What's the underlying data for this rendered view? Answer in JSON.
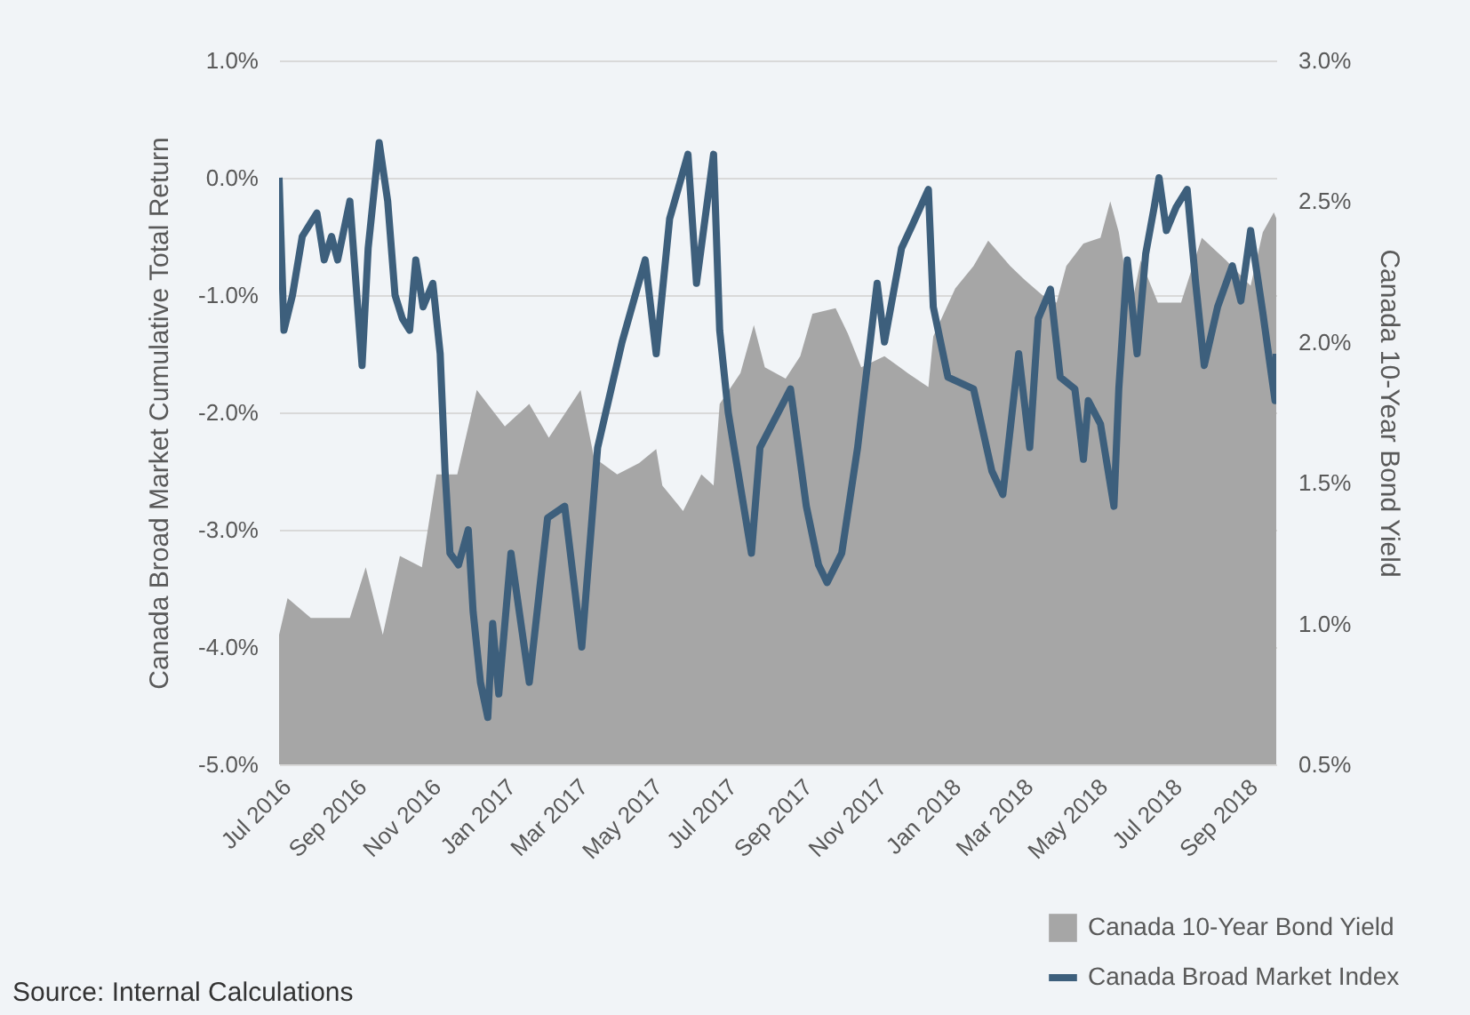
{
  "chart_data": {
    "type": "line",
    "ylabel": "Canada Broad Market Cumulative Total Return",
    "y2label": "Canada 10-Year Bond Yield",
    "annotations": [
      "Source: Internal Calculations"
    ],
    "xlim": [
      "2016-07-01",
      "2018-09-26"
    ],
    "xticks": [
      {
        "value": "2016-07-01",
        "label": "Jul 2016"
      },
      {
        "value": "2016-09-01",
        "label": "Sep 2016"
      },
      {
        "value": "2016-11-01",
        "label": "Nov 2016"
      },
      {
        "value": "2017-01-01",
        "label": "Jan 2017"
      },
      {
        "value": "2017-03-01",
        "label": "Mar 2017"
      },
      {
        "value": "2017-05-01",
        "label": "May 2017"
      },
      {
        "value": "2017-07-01",
        "label": "Jul 2017"
      },
      {
        "value": "2017-09-01",
        "label": "Sep 2017"
      },
      {
        "value": "2017-11-01",
        "label": "Nov 2017"
      },
      {
        "value": "2018-01-01",
        "label": "Jan 2018"
      },
      {
        "value": "2018-03-01",
        "label": "Mar 2018"
      },
      {
        "value": "2018-05-01",
        "label": "May 2018"
      },
      {
        "value": "2018-07-01",
        "label": "Jul 2018"
      },
      {
        "value": "2018-09-01",
        "label": "Sep 2018"
      }
    ],
    "ylim": [
      -5.0,
      1.0
    ],
    "yticks": [
      {
        "value": 1.0,
        "label": "1.0%"
      },
      {
        "value": 0.0,
        "label": "0.0%"
      },
      {
        "value": -1.0,
        "label": "-1.0%"
      },
      {
        "value": -2.0,
        "label": "-2.0%"
      },
      {
        "value": -3.0,
        "label": "-3.0%"
      },
      {
        "value": -4.0,
        "label": "-4.0%"
      },
      {
        "value": -5.0,
        "label": "-5.0%"
      }
    ],
    "y2lim": [
      0.5,
      3.0
    ],
    "y2ticks": [
      {
        "value": 0.5,
        "label": "0.5%"
      },
      {
        "value": 1.0,
        "label": "1.0%"
      },
      {
        "value": 1.5,
        "label": "1.5%"
      },
      {
        "value": 2.0,
        "label": "2.0%"
      },
      {
        "value": 2.5,
        "label": "2.5%"
      },
      {
        "value": 3.0,
        "label": "3.0%"
      }
    ],
    "grid": "y",
    "legend": "bottom right",
    "series": [
      {
        "name": "Canada 10-Year Bond Yield",
        "type": "area",
        "axis": "y2",
        "color": "#a6a6a6",
        "x": [
          "2016-07-01",
          "2016-07-08",
          "2016-07-27",
          "2016-08-28",
          "2016-09-10",
          "2016-09-24",
          "2016-10-08",
          "2016-10-26",
          "2016-11-07",
          "2016-11-24",
          "2016-12-10",
          "2017-01-02",
          "2017-01-22",
          "2017-02-07",
          "2017-03-05",
          "2017-03-16",
          "2017-04-04",
          "2017-04-22",
          "2017-05-06",
          "2017-05-11",
          "2017-05-28",
          "2017-06-12",
          "2017-06-22",
          "2017-06-27",
          "2017-07-14",
          "2017-07-25",
          "2017-08-03",
          "2017-08-20",
          "2017-09-01",
          "2017-09-11",
          "2017-09-30",
          "2017-10-10",
          "2017-10-21",
          "2017-11-09",
          "2017-11-28",
          "2017-12-15",
          "2017-12-19",
          "2018-01-06",
          "2018-01-21",
          "2018-02-02",
          "2018-02-20",
          "2018-03-04",
          "2018-03-20",
          "2018-03-30",
          "2018-04-07",
          "2018-04-21",
          "2018-05-05",
          "2018-05-13",
          "2018-05-20",
          "2018-05-30",
          "2018-06-07",
          "2018-06-21",
          "2018-07-10",
          "2018-07-27",
          "2018-08-16",
          "2018-09-05",
          "2018-09-15",
          "2018-09-24",
          "2018-09-26"
        ],
        "values": [
          0.96,
          1.09,
          1.02,
          1.02,
          1.2,
          0.96,
          1.24,
          1.2,
          1.53,
          1.53,
          1.83,
          1.7,
          1.78,
          1.66,
          1.83,
          1.59,
          1.53,
          1.57,
          1.62,
          1.49,
          1.4,
          1.53,
          1.49,
          1.78,
          1.89,
          2.06,
          1.91,
          1.87,
          1.95,
          2.1,
          2.12,
          2.03,
          1.91,
          1.95,
          1.89,
          1.84,
          2.02,
          2.19,
          2.27,
          2.36,
          2.27,
          2.22,
          2.16,
          2.14,
          2.27,
          2.35,
          2.37,
          2.5,
          2.39,
          2.12,
          2.29,
          2.14,
          2.14,
          2.37,
          2.29,
          2.2,
          2.39,
          2.46,
          2.44
        ]
      },
      {
        "name": "Canada Broad Market Index",
        "color": "#3d5f7c",
        "x": [
          "2016-07-01",
          "2016-07-05",
          "2016-07-12",
          "2016-07-20",
          "2016-08-01",
          "2016-08-07",
          "2016-08-13",
          "2016-08-18",
          "2016-08-28",
          "2016-09-07",
          "2016-09-12",
          "2016-09-21",
          "2016-09-28",
          "2016-10-04",
          "2016-10-10",
          "2016-10-16",
          "2016-10-21",
          "2016-10-27",
          "2016-11-04",
          "2016-11-10",
          "2016-11-14",
          "2016-11-18",
          "2016-11-25",
          "2016-12-03",
          "2016-12-07",
          "2016-12-13",
          "2016-12-19",
          "2016-12-23",
          "2016-12-28",
          "2017-01-07",
          "2017-01-22",
          "2017-02-06",
          "2017-02-20",
          "2017-03-06",
          "2017-03-19",
          "2017-04-08",
          "2017-04-27",
          "2017-05-06",
          "2017-05-17",
          "2017-06-01",
          "2017-06-08",
          "2017-06-22",
          "2017-06-27",
          "2017-07-04",
          "2017-07-23",
          "2017-07-30",
          "2017-08-24",
          "2017-09-06",
          "2017-09-16",
          "2017-09-23",
          "2017-10-05",
          "2017-10-18",
          "2017-11-03",
          "2017-11-09",
          "2017-11-23",
          "2017-12-02",
          "2017-12-15",
          "2017-12-19",
          "2017-12-31",
          "2018-01-21",
          "2018-02-05",
          "2018-02-14",
          "2018-02-27",
          "2018-03-08",
          "2018-03-15",
          "2018-03-25",
          "2018-04-02",
          "2018-04-14",
          "2018-04-21",
          "2018-04-25",
          "2018-05-05",
          "2018-05-16",
          "2018-05-20",
          "2018-05-27",
          "2018-06-04",
          "2018-06-11",
          "2018-06-18",
          "2018-06-22",
          "2018-06-28",
          "2018-07-06",
          "2018-07-15",
          "2018-07-22",
          "2018-07-29",
          "2018-08-09",
          "2018-08-21",
          "2018-08-28",
          "2018-09-05",
          "2018-09-15",
          "2018-09-25",
          "2018-09-26"
        ],
        "values": [
          0.0,
          -1.3,
          -1.0,
          -0.5,
          -0.3,
          -0.7,
          -0.5,
          -0.7,
          -0.2,
          -1.6,
          -0.6,
          0.3,
          -0.2,
          -1.0,
          -1.2,
          -1.3,
          -0.7,
          -1.1,
          -0.9,
          -1.5,
          -2.5,
          -3.2,
          -3.3,
          -3.0,
          -3.7,
          -4.3,
          -4.6,
          -3.8,
          -4.4,
          -3.2,
          -4.3,
          -2.9,
          -2.8,
          -4.0,
          -2.3,
          -1.4,
          -0.7,
          -1.5,
          -0.35,
          0.2,
          -0.9,
          0.2,
          -1.3,
          -2.0,
          -3.2,
          -2.3,
          -1.8,
          -2.8,
          -3.3,
          -3.45,
          -3.2,
          -2.3,
          -0.9,
          -1.4,
          -0.6,
          -0.4,
          -0.1,
          -1.1,
          -1.7,
          -1.8,
          -2.5,
          -2.7,
          -1.5,
          -2.3,
          -1.2,
          -0.95,
          -1.7,
          -1.8,
          -2.4,
          -1.9,
          -2.1,
          -2.8,
          -1.8,
          -0.7,
          -1.5,
          -0.65,
          -0.25,
          0.0,
          -0.45,
          -0.25,
          -0.1,
          -0.9,
          -1.6,
          -1.1,
          -0.75,
          -1.05,
          -0.45,
          -1.15,
          -1.9,
          -1.5
        ]
      }
    ]
  }
}
